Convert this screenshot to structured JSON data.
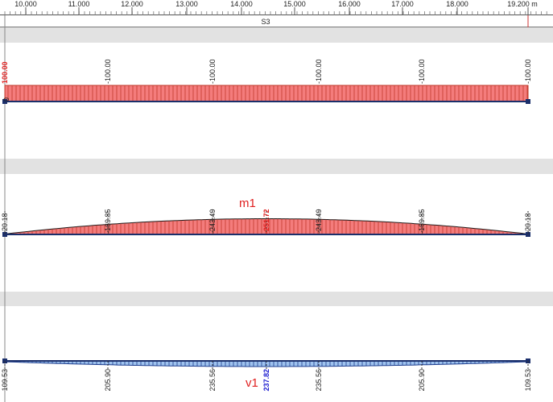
{
  "ruler": {
    "ticks": [
      "10.000",
      "11.000",
      "12.000",
      "13.000",
      "14.000",
      "15.000",
      "16.000",
      "17.000",
      "18.000",
      "19.200 m"
    ],
    "member_label": "S3"
  },
  "panels": [
    {
      "id": "axial",
      "labels": [
        "100.00",
        "-100.00",
        "-100.00",
        "-100.00",
        "-100.00",
        "-100.00"
      ],
      "end_marker": "0",
      "colors": {
        "fill": "#f47c7c",
        "edge": "#c0392b",
        "highlight": "#e02020"
      }
    },
    {
      "id": "moment",
      "name": "m1",
      "labels": [
        "-20.18",
        "-169.85",
        "-243.49",
        "-251.72",
        "-243.49",
        "-169.85",
        "-20.18"
      ],
      "colors": {
        "fill": "#f47c7c",
        "edge": "#c0392b",
        "highlight": "#e02020"
      }
    },
    {
      "id": "shear",
      "name": "v1",
      "labels": [
        "109.53",
        "205.90",
        "235.56",
        "237.82",
        "235.56",
        "205.90",
        "109.53"
      ],
      "colors": {
        "fill": "#9fc3ef",
        "edge": "#1f3f8f",
        "highlight": "#2020d0"
      }
    }
  ],
  "colors": {
    "band": "#e2e2e2",
    "line": "#1b2f6b",
    "text": "#222222"
  }
}
